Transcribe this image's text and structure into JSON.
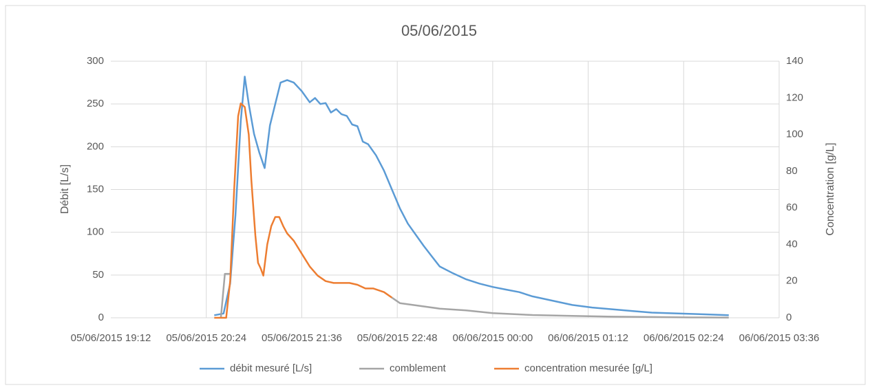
{
  "chart_data": {
    "type": "line",
    "title": "05/06/2015",
    "y_label": "Débit [L/s]",
    "y2_label": "Concentration [g/L]",
    "xlim": [
      "2015-06-05T19:12",
      "2015-06-06T03:36"
    ],
    "xticks": [
      {
        "value": "2015-06-05T19:12",
        "label": "05/06/2015 19:12"
      },
      {
        "value": "2015-06-05T20:24",
        "label": "05/06/2015 20:24"
      },
      {
        "value": "2015-06-05T21:36",
        "label": "05/06/2015 21:36"
      },
      {
        "value": "2015-06-05T22:48",
        "label": "05/06/2015 22:48"
      },
      {
        "value": "2015-06-06T00:00",
        "label": "06/06/2015 00:00"
      },
      {
        "value": "2015-06-06T01:12",
        "label": "06/06/2015 01:12"
      },
      {
        "value": "2015-06-06T02:24",
        "label": "06/06/2015 02:24"
      },
      {
        "value": "2015-06-06T03:36",
        "label": "06/06/2015 03:36"
      }
    ],
    "ylim": [
      0,
      300
    ],
    "yticks": [
      0,
      50,
      100,
      150,
      200,
      250,
      300
    ],
    "y2lim": [
      0,
      140
    ],
    "y2ticks": [
      0,
      20,
      40,
      60,
      80,
      100,
      120,
      140
    ],
    "grid": true,
    "legend": "bottom",
    "series": [
      {
        "name": "débit mesuré [L/s]",
        "color": "#5b9bd5",
        "x": [
          "2015-06-05T20:30",
          "2015-06-05T20:37",
          "2015-06-05T20:42",
          "2015-06-05T20:46",
          "2015-06-05T20:50",
          "2015-06-05T20:53",
          "2015-06-05T20:56",
          "2015-06-05T21:00",
          "2015-06-05T21:04",
          "2015-06-05T21:08",
          "2015-06-05T21:12",
          "2015-06-05T21:16",
          "2015-06-05T21:20",
          "2015-06-05T21:25",
          "2015-06-05T21:30",
          "2015-06-05T21:36",
          "2015-06-05T21:42",
          "2015-06-05T21:46",
          "2015-06-05T21:50",
          "2015-06-05T21:54",
          "2015-06-05T21:58",
          "2015-06-05T22:02",
          "2015-06-05T22:06",
          "2015-06-05T22:10",
          "2015-06-05T22:14",
          "2015-06-05T22:18",
          "2015-06-05T22:22",
          "2015-06-05T22:26",
          "2015-06-05T22:32",
          "2015-06-05T22:38",
          "2015-06-05T22:44",
          "2015-06-05T22:50",
          "2015-06-05T22:56",
          "2015-06-05T23:02",
          "2015-06-05T23:08",
          "2015-06-05T23:14",
          "2015-06-05T23:20",
          "2015-06-05T23:30",
          "2015-06-05T23:40",
          "2015-06-05T23:50",
          "2015-06-06T00:00",
          "2015-06-06T00:10",
          "2015-06-06T00:20",
          "2015-06-06T00:30",
          "2015-06-06T00:45",
          "2015-06-06T01:00",
          "2015-06-06T01:15",
          "2015-06-06T01:30",
          "2015-06-06T01:45",
          "2015-06-06T02:00",
          "2015-06-06T02:20",
          "2015-06-06T02:40",
          "2015-06-06T02:58"
        ],
        "values": [
          3,
          5,
          40,
          120,
          230,
          282,
          250,
          215,
          193,
          175,
          225,
          250,
          275,
          278,
          275,
          265,
          252,
          257,
          250,
          251,
          240,
          244,
          238,
          236,
          226,
          224,
          206,
          203,
          190,
          172,
          150,
          128,
          110,
          97,
          84,
          72,
          60,
          52,
          45,
          40,
          36,
          33,
          30,
          25,
          20,
          15,
          12,
          10,
          8,
          6,
          5,
          4,
          3
        ]
      },
      {
        "name": "comblement",
        "color": "#a5a5a5",
        "axis": "y2",
        "x": [
          "2015-06-05T20:35",
          "2015-06-05T20:38",
          "2015-06-05T20:42",
          "2015-06-05T20:43",
          "2015-06-05T22:44",
          "2015-06-05T22:50",
          "2015-06-05T23:00",
          "2015-06-05T23:20",
          "2015-06-05T23:40",
          "2015-06-06T00:00",
          "2015-06-06T00:30",
          "2015-06-06T01:00",
          "2015-06-06T01:30",
          "2015-06-06T02:00",
          "2015-06-06T02:30",
          "2015-06-06T02:58"
        ],
        "values": [
          0,
          24,
          24,
          null,
          11,
          8,
          7,
          5,
          4,
          2.5,
          1.5,
          1,
          0.6,
          0.4,
          0.2,
          0.1
        ]
      },
      {
        "name": "concentration mesurée [g/L]",
        "color": "#ed7d31",
        "axis": "y2",
        "x": [
          "2015-06-05T20:30",
          "2015-06-05T20:39",
          "2015-06-05T20:42",
          "2015-06-05T20:45",
          "2015-06-05T20:48",
          "2015-06-05T20:50",
          "2015-06-05T20:53",
          "2015-06-05T20:56",
          "2015-06-05T20:58",
          "2015-06-05T21:01",
          "2015-06-05T21:03",
          "2015-06-05T21:05",
          "2015-06-05T21:07",
          "2015-06-05T21:10",
          "2015-06-05T21:13",
          "2015-06-05T21:16",
          "2015-06-05T21:19",
          "2015-06-05T21:22",
          "2015-06-05T21:25",
          "2015-06-05T21:30",
          "2015-06-05T21:36",
          "2015-06-05T21:42",
          "2015-06-05T21:48",
          "2015-06-05T21:54",
          "2015-06-05T22:00",
          "2015-06-05T22:06",
          "2015-06-05T22:12",
          "2015-06-05T22:18",
          "2015-06-05T22:24",
          "2015-06-05T22:30",
          "2015-06-05T22:38",
          "2015-06-05T22:44"
        ],
        "values": [
          0,
          0,
          20,
          70,
          110,
          117,
          115,
          100,
          75,
          45,
          30,
          27,
          23,
          40,
          50,
          55,
          55,
          50,
          46,
          42,
          35,
          28,
          23,
          20,
          19,
          19,
          19,
          18,
          16,
          16,
          14,
          11
        ]
      }
    ]
  }
}
